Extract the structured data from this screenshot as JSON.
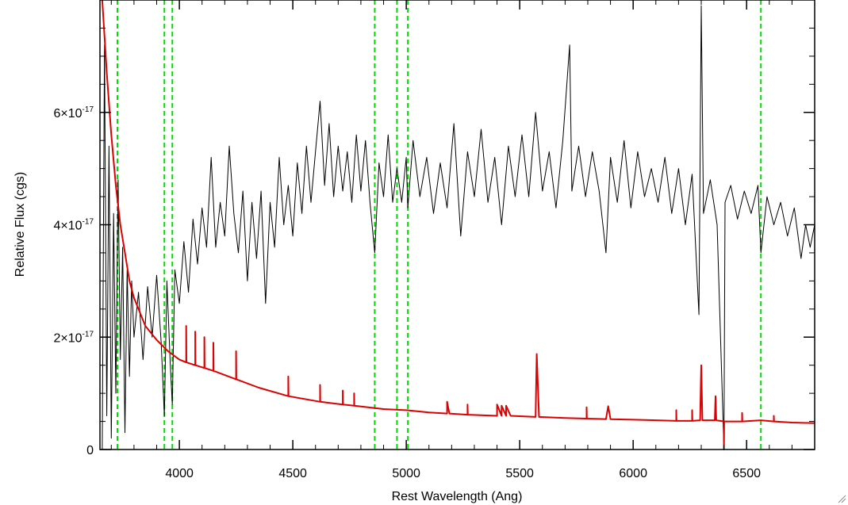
{
  "chart_data": {
    "type": "line",
    "title": "",
    "xlabel": "Rest Wavelength (Ang)",
    "ylabel": "Relative Flux (cgs)",
    "xlim": [
      3650,
      6800
    ],
    "ylim": [
      0,
      8e-17
    ],
    "x_ticks": [
      4000,
      4500,
      5000,
      5500,
      6000,
      6500
    ],
    "x_tick_labels": [
      "4000",
      "4500",
      "5000",
      "5500",
      "6000",
      "6500"
    ],
    "y_ticks": [
      {
        "value": 0,
        "mantissa": "0",
        "exponent": ""
      },
      {
        "value": 2e-17,
        "mantissa": "2×10",
        "exponent": "-17"
      },
      {
        "value": 4e-17,
        "mantissa": "4×10",
        "exponent": "-17"
      },
      {
        "value": 6e-17,
        "mantissa": "6×10",
        "exponent": "-17"
      }
    ],
    "grid": false,
    "legend": "none",
    "reference_lines": {
      "style": "dashed",
      "color": "#00dd00",
      "x": [
        3727,
        3934,
        3969,
        4861,
        4959,
        5007,
        6563
      ]
    },
    "series": [
      {
        "color": "#000000",
        "points": [
          [
            3660,
            0.0
          ],
          [
            3670,
            7.2e-17
          ],
          [
            3680,
            6e-18
          ],
          [
            3690,
            5.4e-17
          ],
          [
            3700,
            2e-18
          ],
          [
            3710,
            4.2e-17
          ],
          [
            3720,
            1e-17
          ],
          [
            3730,
            4.8e-17
          ],
          [
            3740,
            1.6e-17
          ],
          [
            3750,
            3.6e-17
          ],
          [
            3760,
            3e-18
          ],
          [
            3770,
            3.2e-17
          ],
          [
            3780,
            1.3e-17
          ],
          [
            3790,
            3e-17
          ],
          [
            3800,
            2e-17
          ],
          [
            3820,
            2.8e-17
          ],
          [
            3840,
            1.6e-17
          ],
          [
            3860,
            2.9e-17
          ],
          [
            3880,
            2e-17
          ],
          [
            3900,
            3.1e-17
          ],
          [
            3920,
            1.9e-17
          ],
          [
            3934,
            6e-18
          ],
          [
            3945,
            3e-17
          ],
          [
            3960,
            1.5e-17
          ],
          [
            3969,
            8e-18
          ],
          [
            3980,
            3.2e-17
          ],
          [
            4000,
            2.6e-17
          ],
          [
            4020,
            3.7e-17
          ],
          [
            4040,
            2.8e-17
          ],
          [
            4060,
            4.1e-17
          ],
          [
            4080,
            3.3e-17
          ],
          [
            4100,
            4.3e-17
          ],
          [
            4120,
            3.6e-17
          ],
          [
            4140,
            5.2e-17
          ],
          [
            4160,
            3.6e-17
          ],
          [
            4180,
            4.4e-17
          ],
          [
            4200,
            3.8e-17
          ],
          [
            4220,
            5.4e-17
          ],
          [
            4240,
            4.2e-17
          ],
          [
            4260,
            3.5e-17
          ],
          [
            4280,
            4.6e-17
          ],
          [
            4300,
            3e-17
          ],
          [
            4320,
            4.4e-17
          ],
          [
            4340,
            3.4e-17
          ],
          [
            4360,
            4.6e-17
          ],
          [
            4380,
            2.6e-17
          ],
          [
            4400,
            4.4e-17
          ],
          [
            4420,
            3.6e-17
          ],
          [
            4440,
            5.2e-17
          ],
          [
            4460,
            4e-17
          ],
          [
            4480,
            4.7e-17
          ],
          [
            4500,
            3.8e-17
          ],
          [
            4520,
            5.1e-17
          ],
          [
            4540,
            4.2e-17
          ],
          [
            4560,
            5.4e-17
          ],
          [
            4580,
            4.4e-17
          ],
          [
            4600,
            5.3e-17
          ],
          [
            4620,
            6.2e-17
          ],
          [
            4640,
            4.7e-17
          ],
          [
            4660,
            5.8e-17
          ],
          [
            4680,
            4.5e-17
          ],
          [
            4700,
            5.4e-17
          ],
          [
            4720,
            4.6e-17
          ],
          [
            4740,
            5.3e-17
          ],
          [
            4760,
            4.4e-17
          ],
          [
            4780,
            5.6e-17
          ],
          [
            4800,
            4.6e-17
          ],
          [
            4820,
            5.5e-17
          ],
          [
            4840,
            4.4e-17
          ],
          [
            4861,
            3.5e-17
          ],
          [
            4880,
            5.1e-17
          ],
          [
            4900,
            4.5e-17
          ],
          [
            4920,
            5.6e-17
          ],
          [
            4940,
            4.4e-17
          ],
          [
            4959,
            5e-17
          ],
          [
            4980,
            4.4e-17
          ],
          [
            5000,
            5.2e-17
          ],
          [
            5007,
            4.3e-17
          ],
          [
            5030,
            5.5e-17
          ],
          [
            5060,
            4.5e-17
          ],
          [
            5090,
            5.2e-17
          ],
          [
            5120,
            4.2e-17
          ],
          [
            5150,
            5.1e-17
          ],
          [
            5180,
            4.3e-17
          ],
          [
            5210,
            5.8e-17
          ],
          [
            5240,
            3.8e-17
          ],
          [
            5270,
            5.3e-17
          ],
          [
            5300,
            4.5e-17
          ],
          [
            5330,
            5.7e-17
          ],
          [
            5360,
            4.4e-17
          ],
          [
            5390,
            5.2e-17
          ],
          [
            5420,
            4e-17
          ],
          [
            5450,
            5.4e-17
          ],
          [
            5480,
            4.5e-17
          ],
          [
            5510,
            5.6e-17
          ],
          [
            5540,
            4.5e-17
          ],
          [
            5570,
            6e-17
          ],
          [
            5600,
            4.6e-17
          ],
          [
            5630,
            5.3e-17
          ],
          [
            5660,
            4.3e-17
          ],
          [
            5690,
            5.5e-17
          ],
          [
            5720,
            7.2e-17
          ],
          [
            5730,
            4.6e-17
          ],
          [
            5760,
            5.4e-17
          ],
          [
            5790,
            4.5e-17
          ],
          [
            5820,
            5.3e-17
          ],
          [
            5850,
            4.6e-17
          ],
          [
            5880,
            3.5e-17
          ],
          [
            5900,
            5.2e-17
          ],
          [
            5930,
            4.4e-17
          ],
          [
            5960,
            5.5e-17
          ],
          [
            5990,
            4.3e-17
          ],
          [
            6020,
            5.3e-17
          ],
          [
            6050,
            4.5e-17
          ],
          [
            6080,
            5e-17
          ],
          [
            6110,
            4.4e-17
          ],
          [
            6140,
            5.2e-17
          ],
          [
            6170,
            4.2e-17
          ],
          [
            6200,
            5e-17
          ],
          [
            6230,
            4e-17
          ],
          [
            6260,
            4.9e-17
          ],
          [
            6290,
            2.4e-17
          ],
          [
            6300,
            7.9e-17
          ],
          [
            6310,
            4.2e-17
          ],
          [
            6340,
            4.8e-17
          ],
          [
            6370,
            4e-17
          ],
          [
            6400,
            0.0
          ],
          [
            6405,
            4.4e-17
          ],
          [
            6430,
            4.7e-17
          ],
          [
            6460,
            4.1e-17
          ],
          [
            6490,
            4.6e-17
          ],
          [
            6520,
            4.2e-17
          ],
          [
            6550,
            4.7e-17
          ],
          [
            6563,
            3.5e-17
          ],
          [
            6590,
            4.5e-17
          ],
          [
            6620,
            4e-17
          ],
          [
            6650,
            4.4e-17
          ],
          [
            6680,
            3.8e-17
          ],
          [
            6710,
            4.3e-17
          ],
          [
            6740,
            3.4e-17
          ],
          [
            6760,
            4e-17
          ],
          [
            6780,
            3.6e-17
          ],
          [
            6800,
            4e-17
          ]
        ]
      },
      {
        "color": "#dd0000",
        "points": [
          [
            3660,
            8e-17
          ],
          [
            3680,
            6.7e-17
          ],
          [
            3700,
            5.6e-17
          ],
          [
            3720,
            4.7e-17
          ],
          [
            3740,
            4e-17
          ],
          [
            3760,
            3.5e-17
          ],
          [
            3780,
            3e-17
          ],
          [
            3800,
            2.7e-17
          ],
          [
            3850,
            2.2e-17
          ],
          [
            3900,
            1.95e-17
          ],
          [
            3950,
            1.75e-17
          ],
          [
            4000,
            1.6e-17
          ],
          [
            4030,
            1.55e-17
          ],
          [
            4030,
            2.2e-17
          ],
          [
            4031,
            1.55e-17
          ],
          [
            4070,
            1.5e-17
          ],
          [
            4070,
            2.1e-17
          ],
          [
            4071,
            1.5e-17
          ],
          [
            4110,
            1.45e-17
          ],
          [
            4110,
            2e-17
          ],
          [
            4111,
            1.45e-17
          ],
          [
            4150,
            1.4e-17
          ],
          [
            4150,
            1.9e-17
          ],
          [
            4151,
            1.4e-17
          ],
          [
            4250,
            1.25e-17
          ],
          [
            4250,
            1.75e-17
          ],
          [
            4251,
            1.25e-17
          ],
          [
            4350,
            1.1e-17
          ],
          [
            4480,
            9.5e-18
          ],
          [
            4480,
            1.3e-17
          ],
          [
            4481,
            9.5e-18
          ],
          [
            4620,
            8.5e-18
          ],
          [
            4620,
            1.15e-17
          ],
          [
            4621,
            8.5e-18
          ],
          [
            4720,
            8e-18
          ],
          [
            4720,
            1.05e-17
          ],
          [
            4721,
            8e-18
          ],
          [
            4770,
            7.8e-18
          ],
          [
            4770,
            1e-17
          ],
          [
            4771,
            7.8e-18
          ],
          [
            4900,
            7.2e-18
          ],
          [
            5000,
            7e-18
          ],
          [
            5100,
            6.6e-18
          ],
          [
            5180,
            6.4e-18
          ],
          [
            5180,
            8.5e-18
          ],
          [
            5190,
            6.4e-18
          ],
          [
            5270,
            6.2e-18
          ],
          [
            5270,
            8e-18
          ],
          [
            5271,
            6.2e-18
          ],
          [
            5400,
            6e-18
          ],
          [
            5400,
            8e-18
          ],
          [
            5420,
            6e-18
          ],
          [
            5420,
            7.8e-18
          ],
          [
            5440,
            6e-18
          ],
          [
            5440,
            7.8e-18
          ],
          [
            5460,
            6e-18
          ],
          [
            5570,
            5.8e-18
          ],
          [
            5575,
            1.7e-17
          ],
          [
            5585,
            5.8e-18
          ],
          [
            5700,
            5.6e-18
          ],
          [
            5795,
            5.5e-18
          ],
          [
            5795,
            7.5e-18
          ],
          [
            5796,
            5.5e-18
          ],
          [
            5880,
            5.4e-18
          ],
          [
            5890,
            7.7e-18
          ],
          [
            5900,
            5.4e-18
          ],
          [
            6000,
            5.3e-18
          ],
          [
            6100,
            5.2e-18
          ],
          [
            6190,
            5.1e-18
          ],
          [
            6190,
            7e-18
          ],
          [
            6191,
            5.1e-18
          ],
          [
            6260,
            5.1e-18
          ],
          [
            6260,
            7e-18
          ],
          [
            6261,
            5.1e-18
          ],
          [
            6295,
            5.2e-18
          ],
          [
            6300,
            1.5e-17
          ],
          [
            6305,
            5.2e-18
          ],
          [
            6360,
            5.2e-18
          ],
          [
            6363,
            9.5e-18
          ],
          [
            6366,
            5.2e-18
          ],
          [
            6400,
            5e-18
          ],
          [
            6400,
            0.0
          ],
          [
            6401,
            5e-18
          ],
          [
            6480,
            5e-18
          ],
          [
            6480,
            6.5e-18
          ],
          [
            6481,
            5e-18
          ],
          [
            6563,
            5.2e-18
          ],
          [
            6620,
            5e-18
          ],
          [
            6620,
            6e-18
          ],
          [
            6621,
            5e-18
          ],
          [
            6700,
            4.8e-18
          ],
          [
            6800,
            4.7e-18
          ]
        ]
      }
    ]
  }
}
